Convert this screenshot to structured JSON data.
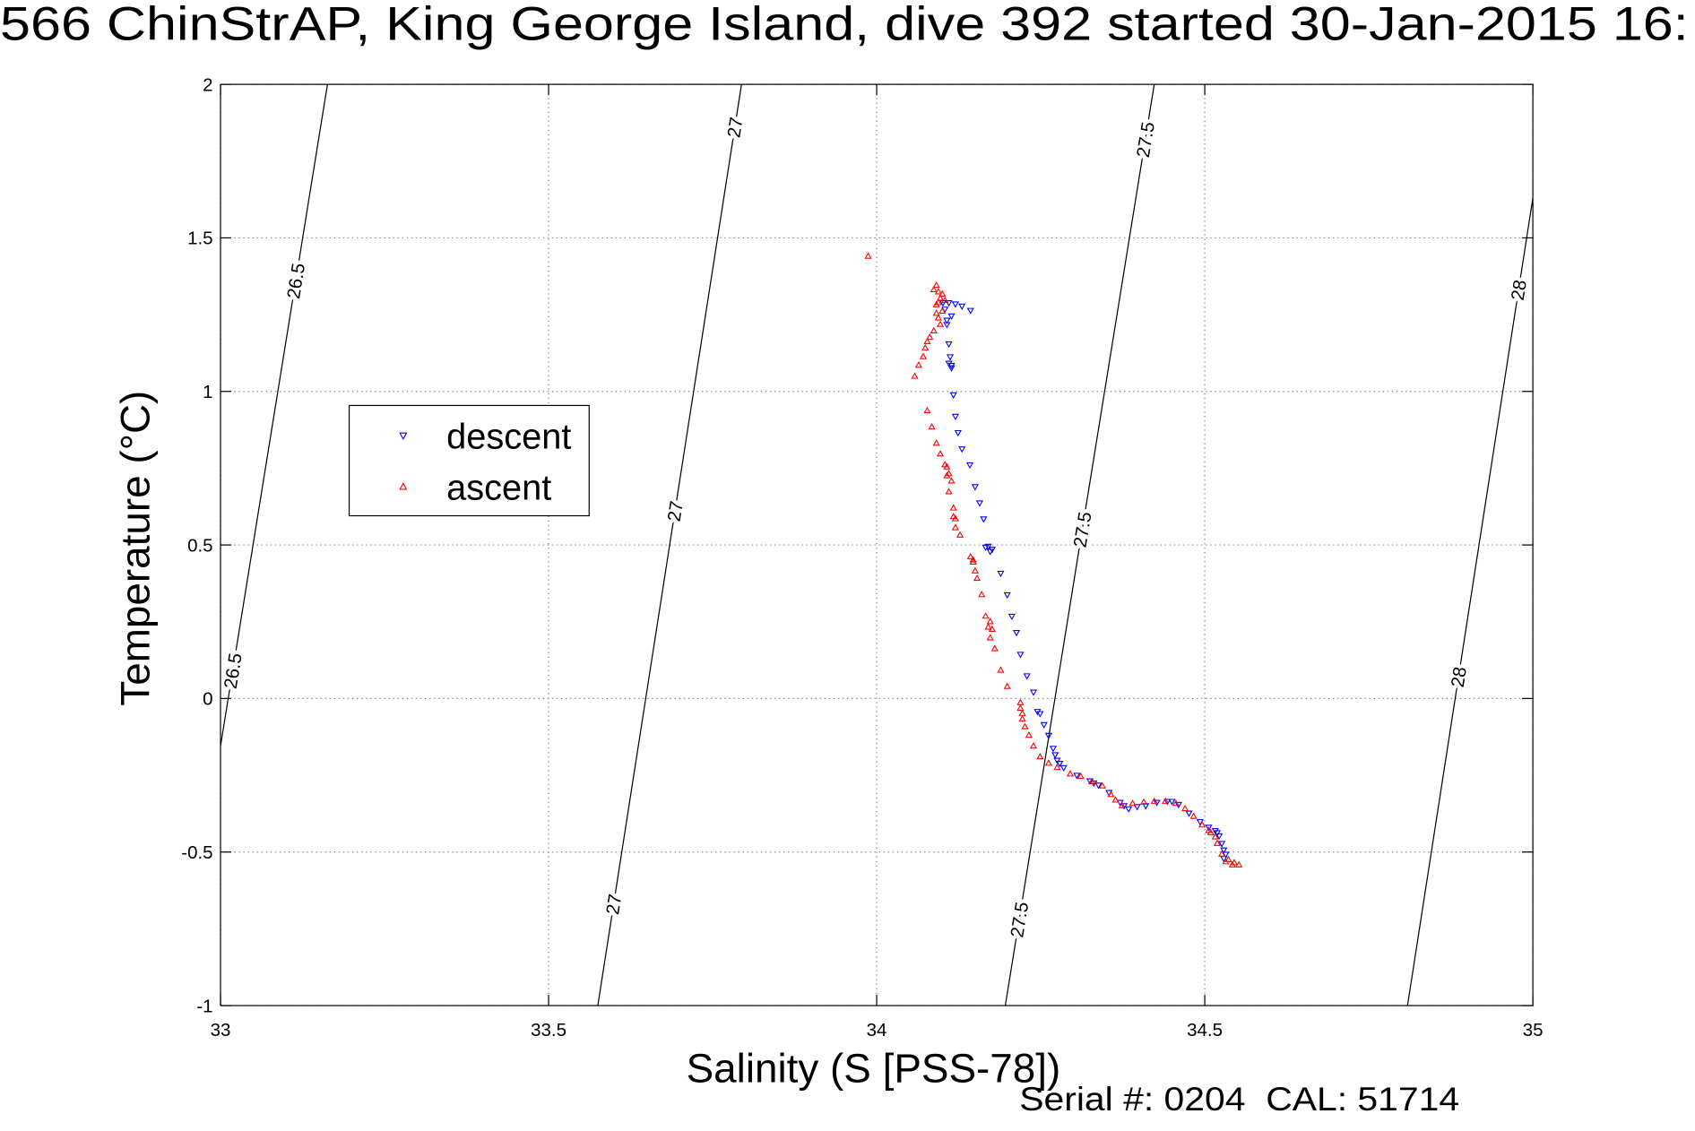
{
  "title": "566 ChinStrAP, King George Island, dive 392 started 30-Jan-2015 16:",
  "footer": "Serial #: 0204  CAL: 51714",
  "chart_data": {
    "type": "scatter",
    "xlabel": "Salinity (S [PSS-78])",
    "ylabel": "Temperature (°C)",
    "xlim": [
      33,
      35
    ],
    "ylim": [
      -1,
      2
    ],
    "xticks": [
      33,
      33.5,
      34,
      34.5,
      35
    ],
    "xtick_labels": [
      "33",
      "33.5",
      "34",
      "34.5",
      "35"
    ],
    "yticks": [
      2,
      1.5,
      1,
      0.5,
      0,
      -0.5,
      -1
    ],
    "ytick_labels": [
      "2",
      "1.5",
      "1",
      "0.5",
      "0",
      "-0.5",
      "-1"
    ],
    "grid": true,
    "legend_position": "upper-left",
    "series": [
      {
        "name": "descent",
        "color": "#0000ff",
        "marker": "triangle-down",
        "points": [
          [
            34.101,
            1.289
          ],
          [
            34.11,
            1.289
          ],
          [
            34.12,
            1.285
          ],
          [
            34.13,
            1.278
          ],
          [
            34.143,
            1.264
          ],
          [
            34.104,
            1.268
          ],
          [
            34.114,
            1.246
          ],
          [
            34.107,
            1.232
          ],
          [
            34.107,
            1.218
          ],
          [
            34.11,
            1.155
          ],
          [
            34.112,
            1.113
          ],
          [
            34.11,
            1.092
          ],
          [
            34.114,
            1.085
          ],
          [
            34.114,
            1.077
          ],
          [
            34.117,
            0.989
          ],
          [
            34.12,
            0.919
          ],
          [
            34.124,
            0.866
          ],
          [
            34.13,
            0.813
          ],
          [
            34.142,
            0.761
          ],
          [
            34.15,
            0.69
          ],
          [
            34.157,
            0.637
          ],
          [
            34.163,
            0.585
          ],
          [
            34.166,
            0.493
          ],
          [
            34.17,
            0.496
          ],
          [
            34.173,
            0.479
          ],
          [
            34.176,
            0.486
          ],
          [
            34.189,
            0.408
          ],
          [
            34.199,
            0.338
          ],
          [
            34.206,
            0.268
          ],
          [
            34.213,
            0.215
          ],
          [
            34.219,
            0.144
          ],
          [
            34.229,
            0.074
          ],
          [
            34.239,
            0.021
          ],
          [
            34.245,
            -0.042
          ],
          [
            34.249,
            -0.049
          ],
          [
            34.255,
            -0.085
          ],
          [
            34.262,
            -0.12
          ],
          [
            34.269,
            -0.162
          ],
          [
            34.272,
            -0.183
          ],
          [
            34.275,
            -0.201
          ],
          [
            34.279,
            -0.211
          ],
          [
            34.285,
            -0.225
          ],
          [
            34.305,
            -0.25
          ],
          [
            34.325,
            -0.268
          ],
          [
            34.331,
            -0.275
          ],
          [
            34.338,
            -0.282
          ],
          [
            34.354,
            -0.306
          ],
          [
            34.371,
            -0.338
          ],
          [
            34.377,
            -0.349
          ],
          [
            34.384,
            -0.359
          ],
          [
            34.397,
            -0.352
          ],
          [
            34.41,
            -0.349
          ],
          [
            34.427,
            -0.338
          ],
          [
            34.443,
            -0.335
          ],
          [
            34.45,
            -0.335
          ],
          [
            34.46,
            -0.345
          ],
          [
            34.476,
            -0.373
          ],
          [
            34.493,
            -0.401
          ],
          [
            34.506,
            -0.419
          ],
          [
            34.516,
            -0.43
          ],
          [
            34.519,
            -0.437
          ],
          [
            34.522,
            -0.447
          ],
          [
            34.526,
            -0.472
          ],
          [
            34.529,
            -0.493
          ],
          [
            34.529,
            -0.521
          ],
          [
            34.532,
            -0.507
          ]
        ]
      },
      {
        "name": "ascent",
        "color": "#ff0000",
        "marker": "triangle-up",
        "points": [
          [
            33.987,
            1.44
          ],
          [
            34.091,
            1.345
          ],
          [
            34.087,
            1.331
          ],
          [
            34.094,
            1.324
          ],
          [
            34.1,
            1.317
          ],
          [
            34.097,
            1.303
          ],
          [
            34.104,
            1.296
          ],
          [
            34.094,
            1.289
          ],
          [
            34.091,
            1.282
          ],
          [
            34.1,
            1.261
          ],
          [
            34.091,
            1.254
          ],
          [
            34.094,
            1.239
          ],
          [
            34.097,
            1.218
          ],
          [
            34.087,
            1.197
          ],
          [
            34.081,
            1.176
          ],
          [
            34.077,
            1.162
          ],
          [
            34.074,
            1.141
          ],
          [
            34.071,
            1.113
          ],
          [
            34.064,
            1.085
          ],
          [
            34.058,
            1.049
          ],
          [
            34.077,
            0.937
          ],
          [
            34.084,
            0.884
          ],
          [
            34.091,
            0.831
          ],
          [
            34.097,
            0.796
          ],
          [
            34.104,
            0.761
          ],
          [
            34.107,
            0.754
          ],
          [
            34.11,
            0.732
          ],
          [
            34.107,
            0.725
          ],
          [
            34.114,
            0.708
          ],
          [
            34.11,
            0.673
          ],
          [
            34.117,
            0.62
          ],
          [
            34.117,
            0.592
          ],
          [
            34.12,
            0.585
          ],
          [
            34.12,
            0.556
          ],
          [
            34.127,
            0.532
          ],
          [
            34.143,
            0.461
          ],
          [
            34.147,
            0.451
          ],
          [
            34.147,
            0.444
          ],
          [
            34.15,
            0.415
          ],
          [
            34.153,
            0.391
          ],
          [
            34.16,
            0.338
          ],
          [
            34.166,
            0.268
          ],
          [
            34.173,
            0.25
          ],
          [
            34.17,
            0.232
          ],
          [
            34.176,
            0.225
          ],
          [
            34.173,
            0.197
          ],
          [
            34.18,
            0.162
          ],
          [
            34.189,
            0.092
          ],
          [
            34.199,
            0.039
          ],
          [
            34.219,
            -0.014
          ],
          [
            34.219,
            -0.032
          ],
          [
            34.222,
            -0.049
          ],
          [
            34.222,
            -0.067
          ],
          [
            34.226,
            -0.092
          ],
          [
            34.232,
            -0.12
          ],
          [
            34.239,
            -0.155
          ],
          [
            34.249,
            -0.19
          ],
          [
            34.262,
            -0.211
          ],
          [
            34.275,
            -0.225
          ],
          [
            34.295,
            -0.246
          ],
          [
            34.311,
            -0.254
          ],
          [
            34.328,
            -0.271
          ],
          [
            34.344,
            -0.285
          ],
          [
            34.364,
            -0.331
          ],
          [
            34.357,
            -0.313
          ],
          [
            34.374,
            -0.349
          ],
          [
            34.39,
            -0.342
          ],
          [
            34.407,
            -0.338
          ],
          [
            34.423,
            -0.335
          ],
          [
            34.44,
            -0.335
          ],
          [
            34.456,
            -0.342
          ],
          [
            34.47,
            -0.359
          ],
          [
            34.483,
            -0.384
          ],
          [
            34.496,
            -0.412
          ],
          [
            34.506,
            -0.43
          ],
          [
            34.509,
            -0.437
          ],
          [
            34.516,
            -0.451
          ],
          [
            34.519,
            -0.472
          ],
          [
            34.526,
            -0.507
          ],
          [
            34.532,
            -0.532
          ],
          [
            34.536,
            -0.525
          ],
          [
            34.545,
            -0.535
          ],
          [
            34.542,
            -0.542
          ],
          [
            34.552,
            -0.542
          ]
        ]
      }
    ],
    "contours": [
      {
        "level": "26.5",
        "points": [
          [
            33.163,
            2
          ],
          [
            33.0,
            -0.155
          ]
        ]
      },
      {
        "level": "27",
        "points": [
          [
            33.794,
            2
          ],
          [
            33.575,
            -1
          ]
        ]
      },
      {
        "level": "27.5",
        "points": [
          [
            34.423,
            2
          ],
          [
            34.196,
            -1
          ]
        ]
      },
      {
        "level": "28",
        "points": [
          [
            35.0,
            1.63
          ],
          [
            34.809,
            -1
          ]
        ]
      }
    ]
  }
}
